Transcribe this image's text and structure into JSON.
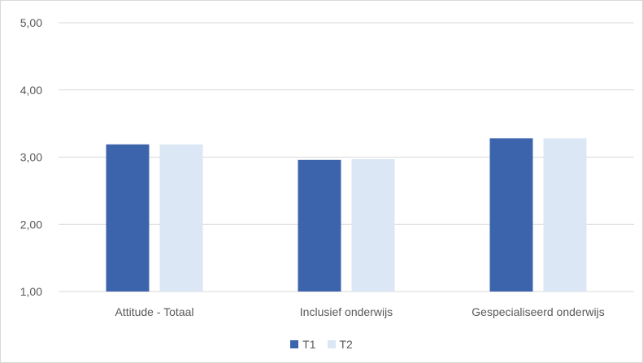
{
  "chart_data": {
    "type": "bar",
    "categories": [
      "Attitude - Totaal",
      "Inclusief onderwijs",
      "Gespecialiseerd onderwijs"
    ],
    "series": [
      {
        "name": "T1",
        "values": [
          3.19,
          2.96,
          3.28
        ],
        "color": "#3c64ac"
      },
      {
        "name": "T2",
        "values": [
          3.19,
          2.97,
          3.28
        ],
        "color": "#dbe7f4"
      }
    ],
    "yticks": [
      "1,00",
      "2,00",
      "3,00",
      "4,00",
      "5,00"
    ],
    "ylim": [
      1,
      5
    ],
    "grid": true,
    "legend": "bottom-center"
  }
}
